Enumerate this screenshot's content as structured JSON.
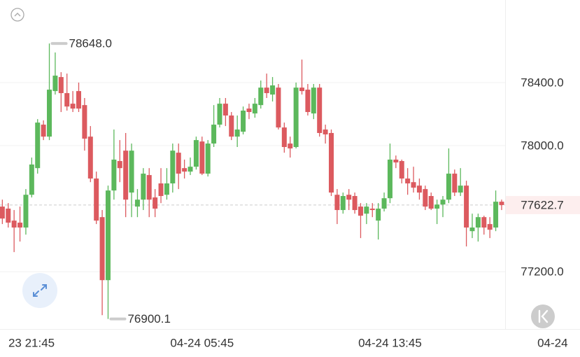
{
  "chart_data": {
    "type": "candlestick",
    "up_color": "#5cb85c",
    "down_color": "#dc5a5f",
    "xlim": [
      -0.4,
      85.6
    ],
    "ylim": [
      76836,
      78924
    ],
    "xticks": [
      {
        "value": 2,
        "label": "23 21:45"
      },
      {
        "value": 34,
        "label": "04-24 05:45"
      },
      {
        "value": 66,
        "label": "04-24 13:45"
      },
      {
        "value": 98,
        "label": "04-24"
      }
    ],
    "yticks": [
      {
        "value": 78400,
        "label": "78400.0"
      },
      {
        "value": 78000,
        "label": "78000.0"
      },
      {
        "value": 77200,
        "label": "77200.0"
      }
    ],
    "grid": true,
    "open": [
      77613,
      77600,
      77524,
      77511,
      77480,
      77688,
      77857,
      78133,
      78057,
      78346,
      78435,
      78333,
      78266,
      78346,
      78257,
      78057,
      77791,
      77546,
      77146,
      77715,
      77902,
      77968,
      77702,
      77613,
      77657,
      77813,
      77671,
      77760,
      77688,
      77760,
      77955,
      77857,
      77835,
      77866,
      78026,
      77822,
      78013,
      78133,
      78266,
      78191,
      78057,
      78088,
      78235,
      78204,
      78257,
      78368,
      78324,
      78368,
      78115,
      78013,
      77991,
      78368,
      78355,
      78204,
      78368,
      78102,
      78080,
      77688,
      77591,
      77688,
      77680,
      77613,
      77568,
      77600,
      77524,
      77600,
      77666,
      77911,
      77902,
      77791,
      77768,
      77746,
      77724,
      77680,
      77600,
      77626,
      77657,
      77822,
      77702,
      77746,
      77457,
      77480,
      77546,
      77502,
      77480,
      77644
    ],
    "high": [
      77657,
      77635,
      77591,
      77613,
      77724,
      77924,
      78168,
      78160,
      78648.0,
      78591,
      78466,
      78457,
      78346,
      78400,
      78302,
      78124,
      77835,
      77591,
      77746,
      78102,
      78035,
      78080,
      78013,
      77724,
      77857,
      77857,
      77724,
      77857,
      77857,
      78013,
      78013,
      77911,
      77924,
      78057,
      78057,
      78035,
      78257,
      78302,
      78302,
      78213,
      78191,
      78248,
      78266,
      78302,
      78413,
      78457,
      78435,
      78391,
      78146,
      78057,
      78400,
      78546,
      78391,
      78391,
      78391,
      78133,
      78102,
      77724,
      77702,
      77724,
      77702,
      77635,
      77635,
      77635,
      77635,
      77702,
      78013,
      77937,
      77911,
      77857,
      77866,
      77791,
      77746,
      77702,
      77657,
      77680,
      77982,
      77848,
      77857,
      77777,
      77568,
      77568,
      77555,
      77546,
      77715,
      77657
    ],
    "low": [
      77502,
      77480,
      77324,
      77391,
      77435,
      77671,
      77822,
      78035,
      78035,
      78324,
      78213,
      78222,
      78213,
      78213,
      77968,
      77768,
      77502,
      76924,
      76900.1,
      77657,
      77768,
      77546,
      77546,
      77546,
      77591,
      77546,
      77546,
      77635,
      77657,
      77702,
      77724,
      77791,
      77813,
      77848,
      77813,
      77804,
      77991,
      78115,
      78124,
      78035,
      77991,
      78071,
      78168,
      78177,
      78235,
      78302,
      78280,
      78102,
      77955,
      77924,
      77982,
      78324,
      78191,
      78168,
      78057,
      78013,
      77680,
      77502,
      77568,
      77591,
      77568,
      77413,
      77502,
      77546,
      77404,
      77582,
      77635,
      77857,
      77760,
      77688,
      77702,
      77657,
      77591,
      77591,
      77502,
      77546,
      77635,
      77680,
      77680,
      77360,
      77413,
      77391,
      77435,
      77413,
      77457,
      77591
    ],
    "close": [
      77537,
      77511,
      77480,
      77480,
      77688,
      77880,
      78146,
      78057,
      78355,
      78444,
      78333,
      78248,
      78235,
      78235,
      78044,
      77791,
      77524,
      77146,
      77715,
      77911,
      77857,
      77657,
      77968,
      77657,
      77822,
      77657,
      77600,
      77680,
      77760,
      77968,
      77822,
      77835,
      77866,
      78035,
      77822,
      78013,
      78133,
      78266,
      78191,
      78057,
      78102,
      78222,
      78213,
      78266,
      78368,
      78333,
      78382,
      78115,
      77991,
      77982,
      78368,
      78346,
      78213,
      78368,
      78080,
      78071,
      77702,
      77591,
      77680,
      77657,
      77591,
      77555,
      77613,
      77591,
      77600,
      77666,
      77911,
      77893,
      77791,
      77760,
      77733,
      77702,
      77613,
      77600,
      77626,
      77657,
      77822,
      77702,
      77746,
      77480,
      77480,
      77546,
      77480,
      77466,
      77644,
      77622.7
    ],
    "annotations": [
      {
        "value": 78648.0,
        "label": "78648.0"
      },
      {
        "value": 76900.1,
        "label": "76900.1"
      }
    ],
    "last_price": {
      "value": 77622.7,
      "label": "77622.7"
    }
  }
}
